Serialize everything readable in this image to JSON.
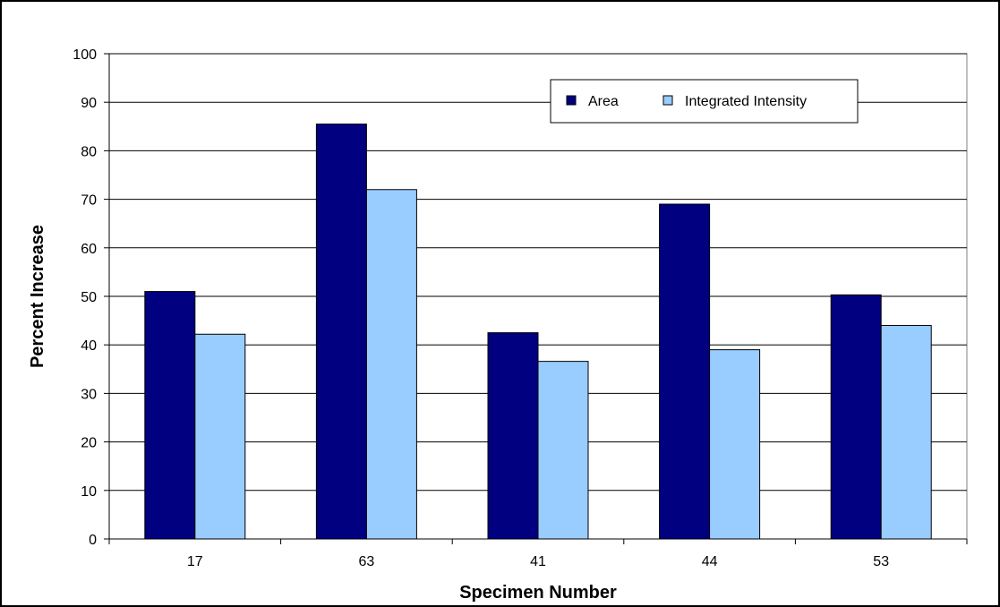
{
  "chart_data": {
    "type": "bar",
    "categories": [
      "17",
      "63",
      "41",
      "44",
      "53"
    ],
    "series": [
      {
        "name": "Area",
        "color": "#000080",
        "values": [
          51,
          85.5,
          42.5,
          69,
          50.3
        ]
      },
      {
        "name": "Integrated Intensity",
        "color": "#99ccff",
        "values": [
          42.2,
          72,
          36.6,
          39,
          44
        ]
      }
    ],
    "xlabel": "Specimen Number",
    "ylabel": "Percent Increase",
    "ylim": [
      0,
      100
    ],
    "yticks": [
      "0",
      "10",
      "20",
      "30",
      "40",
      "50",
      "60",
      "70",
      "80",
      "90",
      "100"
    ],
    "grid": true,
    "legend_position": "top-right"
  }
}
